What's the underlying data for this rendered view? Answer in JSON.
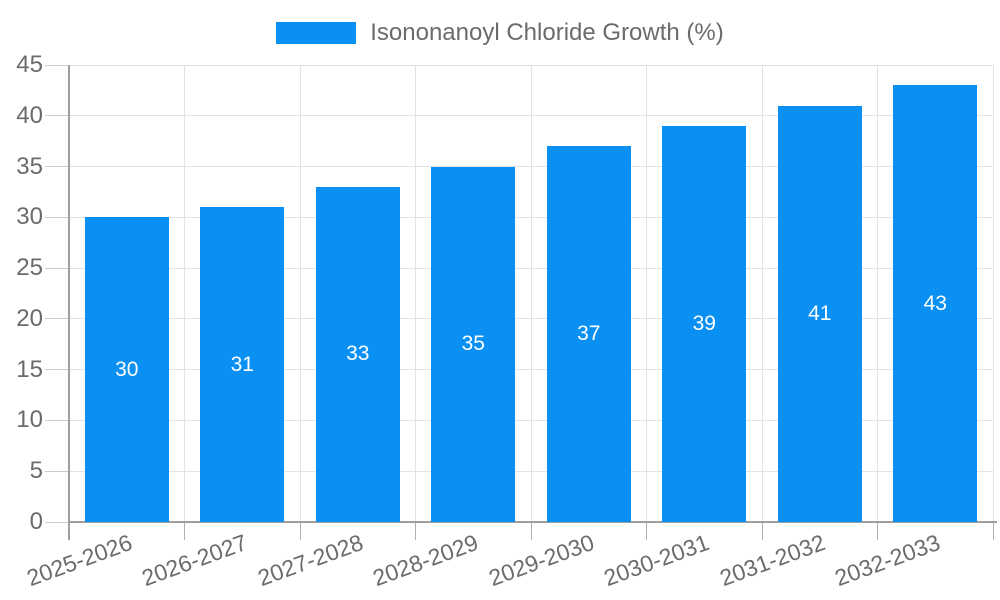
{
  "legend": {
    "label": "Isononanoyl Chloride Growth (%)"
  },
  "chart_data": {
    "type": "bar",
    "title": "Isononanoyl Chloride Growth (%)",
    "categories": [
      "2025-2026",
      "2026-2027",
      "2027-2028",
      "2028-2029",
      "2029-2030",
      "2030-2031",
      "2031-2032",
      "2032-2033"
    ],
    "values": [
      30,
      31,
      33,
      35,
      37,
      39,
      41,
      43
    ],
    "value_labels": [
      "30",
      "31",
      "33",
      "35",
      "37",
      "39",
      "41",
      "43"
    ],
    "ytick_labels": [
      "0",
      "5",
      "10",
      "15",
      "20",
      "25",
      "30",
      "35",
      "40",
      "45"
    ],
    "xlabel": "",
    "ylabel": "",
    "ylim": [
      0,
      45
    ],
    "ytick_step": 5,
    "grid": true,
    "legend_position": "top",
    "x_label_rotation_deg": -20
  },
  "colors": {
    "bar": "#0A90F2",
    "bar_value_text": "#FFFFFF",
    "axis_line": "#9E9E9E",
    "gridline": "#E3E3E3",
    "tick_y": "#CDCDCD",
    "tick_x": "#AFAFAF",
    "label_text": "#6B6B6B",
    "background": "#FFFFFF"
  }
}
